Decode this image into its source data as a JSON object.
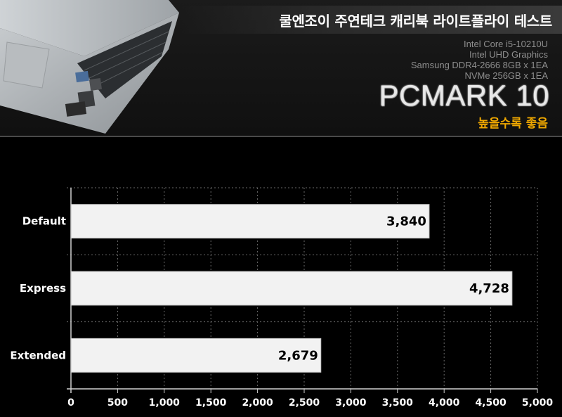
{
  "header": {
    "title": "쿨엔조이 주연테크 캐리북 라이트플라이 테스트",
    "specs": [
      "Intel Core i5-10210U",
      "Intel UHD Graphics",
      "Samsung DDR4-2666 8GB x 1EA",
      "NVMe 256GB x 1EA"
    ],
    "benchmark": "PCMARK 10",
    "note": "높을수록 좋음"
  },
  "chart_data": {
    "type": "bar",
    "orientation": "horizontal",
    "categories": [
      "Default",
      "Express",
      "Extended"
    ],
    "values": [
      3840,
      4728,
      2679
    ],
    "value_labels": [
      "3,840",
      "4,728",
      "2,679"
    ],
    "xlim": [
      0,
      5000
    ],
    "xticks": [
      "0",
      "500",
      "1,000",
      "1,500",
      "2,000",
      "2,500",
      "3,000",
      "3,500",
      "4,000",
      "4,500",
      "5,000"
    ],
    "grid": true,
    "bar_color": "#f2f2f2"
  }
}
